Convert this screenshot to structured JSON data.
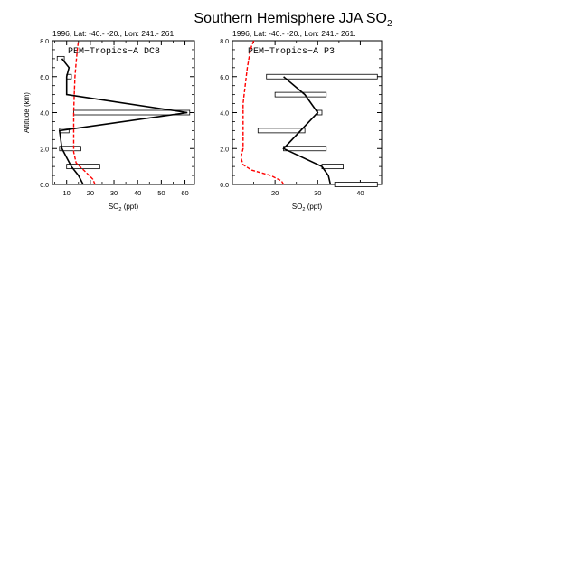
{
  "figure": {
    "title_main": "Southern Hemisphere JJA SO",
    "title_sub": "2"
  },
  "chart_data": [
    {
      "type": "line",
      "panel_header": "1996, Lat: -40.- -20., Lon: 241.- 261.",
      "campaign_label": "PEM−Tropics−A DC8",
      "xlabel_main": "SO",
      "xlabel_sub": "2",
      "xlabel_unit": " (ppt)",
      "ylabel": "Altitude (km)",
      "xlim": [
        4,
        64
      ],
      "ylim": [
        0,
        8
      ],
      "xticks": [
        10,
        20,
        30,
        40,
        50,
        60
      ],
      "yticks": [
        0,
        2,
        4,
        6,
        8
      ],
      "ytick_labels": [
        "0.0",
        "2.0",
        "4.0",
        "6.0",
        "8.0"
      ],
      "colors": {
        "observed": "#000000",
        "model": "#ff0000",
        "box": "#000000"
      },
      "observed": {
        "name": "",
        "x": [
          17,
          15,
          12,
          10,
          8,
          7,
          61,
          10,
          10,
          11,
          8
        ],
        "y": [
          0,
          0.5,
          1,
          1.5,
          2,
          3,
          4,
          5,
          6,
          6.5,
          7
        ]
      },
      "model": {
        "name": "",
        "x": [
          22,
          21,
          18,
          14,
          13,
          13,
          13,
          13,
          13.2,
          13.5,
          14,
          14.5,
          15
        ],
        "y": [
          0,
          0.3,
          0.7,
          1.2,
          1.8,
          2.5,
          3.2,
          4,
          5,
          6,
          6.8,
          7.5,
          8
        ]
      },
      "range_boxes": [
        {
          "y": 1,
          "x_min": 10,
          "x_max": 24
        },
        {
          "y": 2,
          "x_min": 7,
          "x_max": 16
        },
        {
          "y": 3,
          "x_min": 7,
          "x_max": 11
        },
        {
          "y": 4,
          "x_min": 13,
          "x_max": 62
        },
        {
          "y": 6,
          "x_min": 10,
          "x_max": 12
        },
        {
          "y": 7,
          "x_min": 6,
          "x_max": 9
        }
      ]
    },
    {
      "type": "line",
      "panel_header": "1996, Lat: -40.- -20., Lon: 241.- 261.",
      "campaign_label": "PEM−Tropics−A P3",
      "xlabel_main": "SO",
      "xlabel_sub": "2",
      "xlabel_unit": " (ppt)",
      "ylabel": "",
      "xlim": [
        10,
        45
      ],
      "ylim": [
        0,
        8
      ],
      "xticks": [
        20,
        30,
        40
      ],
      "yticks": [
        0,
        2,
        4,
        6,
        8
      ],
      "ytick_labels": [
        "0.0",
        "2.0",
        "4.0",
        "6.0",
        "8.0"
      ],
      "colors": {
        "observed": "#000000",
        "model": "#ff0000",
        "box": "#000000"
      },
      "observed": {
        "name": "",
        "x": [
          33,
          32.5,
          31,
          22,
          30,
          27,
          22
        ],
        "y": [
          0,
          0.5,
          1,
          2,
          4,
          5,
          6
        ]
      },
      "model": {
        "name": "",
        "x": [
          22,
          21.5,
          19,
          14.5,
          12.5,
          12,
          12.5,
          12.5,
          12.5,
          12.5,
          13,
          13.5,
          14,
          14.5,
          15
        ],
        "y": [
          0,
          0.2,
          0.5,
          0.8,
          1.1,
          1.5,
          2,
          3,
          4,
          4.5,
          5.5,
          6.5,
          7.2,
          7.7,
          8
        ]
      },
      "range_boxes": [
        {
          "y": 0,
          "x_min": 34,
          "x_max": 44
        },
        {
          "y": 1,
          "x_min": 31,
          "x_max": 36
        },
        {
          "y": 2,
          "x_min": 22,
          "x_max": 32
        },
        {
          "y": 3,
          "x_min": 16,
          "x_max": 27
        },
        {
          "y": 4,
          "x_min": 30,
          "x_max": 31
        },
        {
          "y": 5,
          "x_min": 20,
          "x_max": 32
        },
        {
          "y": 6,
          "x_min": 18,
          "x_max": 44
        }
      ]
    }
  ]
}
